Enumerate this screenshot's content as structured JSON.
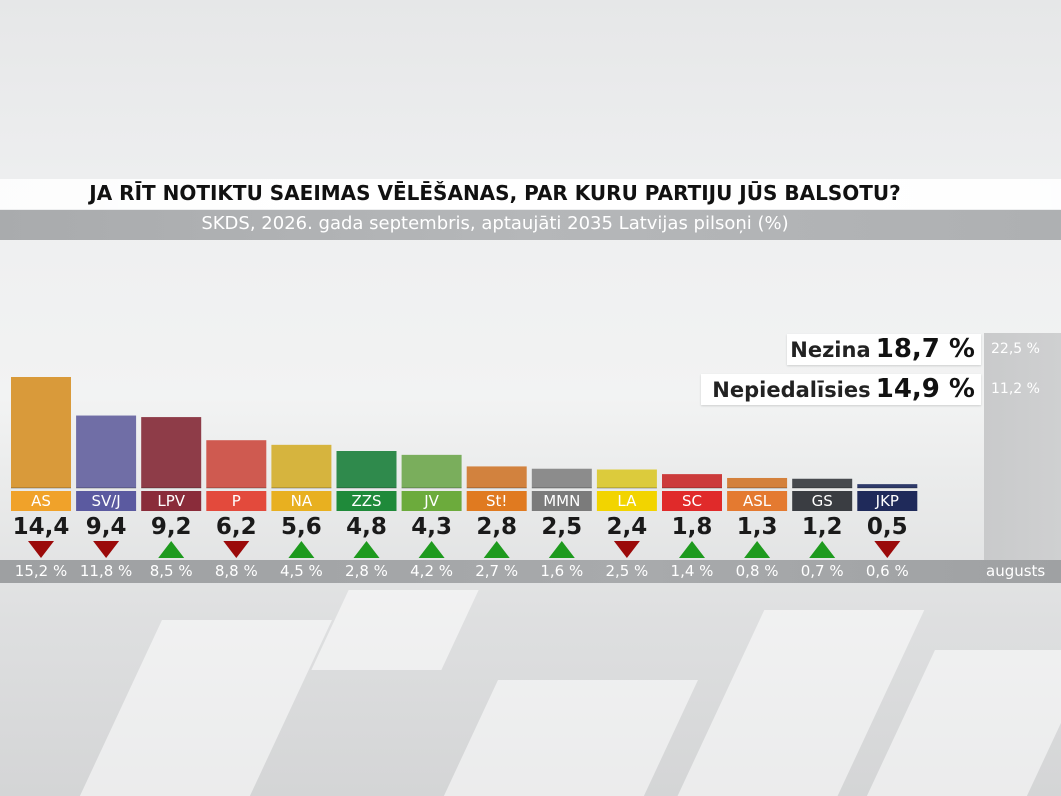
{
  "title": "JA RĪT NOTIKTU SAEIMAS VĒLĒŠANAS, PAR KURU PARTIJU JŪS BALSOTU?",
  "subtitle": "SKDS, 2026. gada septembris, aptaujāti 2035 Latvijas pilsoņi (%)",
  "previous_month_label": "augusts",
  "colors": {
    "up": "#1e9a1e",
    "down": "#9b0a0a"
  },
  "extras": [
    {
      "label": "Nezina",
      "value": "18,7 %",
      "previous": "22,5 %"
    },
    {
      "label": "Nepiedalīsies",
      "value": "14,9 %",
      "previous": "11,2 %"
    }
  ],
  "chart_data": {
    "type": "bar",
    "ylim": [
      0,
      16
    ],
    "parties": [
      {
        "name": "AS",
        "value": 14.4,
        "value_label": "14,4",
        "previous": "15,2 %",
        "trend": "down",
        "bar_color": "#d99a3a",
        "tag_color": "#f0a22a"
      },
      {
        "name": "SV/J",
        "value": 9.4,
        "value_label": "9,4",
        "previous": "11,8 %",
        "trend": "down",
        "bar_color": "#706ea6",
        "tag_color": "#5b5aa0"
      },
      {
        "name": "LPV",
        "value": 9.2,
        "value_label": "9,2",
        "previous": "8,5 %",
        "trend": "up",
        "bar_color": "#8e3c48",
        "tag_color": "#8a2c3a"
      },
      {
        "name": "P",
        "value": 6.2,
        "value_label": "6,2",
        "previous": "8,8 %",
        "trend": "down",
        "bar_color": "#cf5a50",
        "tag_color": "#e34a3c"
      },
      {
        "name": "NA",
        "value": 5.6,
        "value_label": "5,6",
        "previous": "4,5 %",
        "trend": "up",
        "bar_color": "#d6b43e",
        "tag_color": "#e8b020"
      },
      {
        "name": "ZZS",
        "value": 4.8,
        "value_label": "4,8",
        "previous": "2,8 %",
        "trend": "up",
        "bar_color": "#2f8a4c",
        "tag_color": "#1f8a3a"
      },
      {
        "name": "JV",
        "value": 4.3,
        "value_label": "4,3",
        "previous": "4,2 %",
        "trend": "up",
        "bar_color": "#7aae5c",
        "tag_color": "#6cab3c"
      },
      {
        "name": "St!",
        "value": 2.8,
        "value_label": "2,8",
        "previous": "2,7 %",
        "trend": "up",
        "bar_color": "#d2823e",
        "tag_color": "#e07a20"
      },
      {
        "name": "MMN",
        "value": 2.5,
        "value_label": "2,5",
        "previous": "1,6 %",
        "trend": "up",
        "bar_color": "#8c8c8c",
        "tag_color": "#7b7b7b"
      },
      {
        "name": "LA",
        "value": 2.4,
        "value_label": "2,4",
        "previous": "2,5 %",
        "trend": "down",
        "bar_color": "#dccb3c",
        "tag_color": "#f2d400"
      },
      {
        "name": "SC",
        "value": 1.8,
        "value_label": "1,8",
        "previous": "1,4 %",
        "trend": "up",
        "bar_color": "#cc3b3b",
        "tag_color": "#e02a2a"
      },
      {
        "name": "ASL",
        "value": 1.3,
        "value_label": "1,3",
        "previous": "0,8 %",
        "trend": "up",
        "bar_color": "#d4813c",
        "tag_color": "#e47a30"
      },
      {
        "name": "GS",
        "value": 1.2,
        "value_label": "1,2",
        "previous": "0,7 %",
        "trend": "up",
        "bar_color": "#474a4e",
        "tag_color": "#3a3d42"
      },
      {
        "name": "JKP",
        "value": 0.5,
        "value_label": "0,5",
        "previous": "0,6 %",
        "trend": "down",
        "bar_color": "#2f3a6a",
        "tag_color": "#1f2a5a"
      }
    ]
  }
}
